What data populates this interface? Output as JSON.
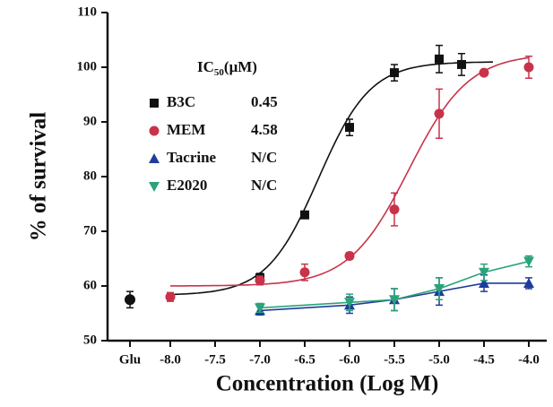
{
  "chart_data": {
    "type": "dose-response",
    "xlabel": "Concentration (Log M)",
    "ylabel": "% of survival",
    "xlim": [
      -8.7,
      -3.8
    ],
    "ylim": [
      50,
      110
    ],
    "yticks": [
      50,
      60,
      70,
      80,
      90,
      100,
      110
    ],
    "xticks": [
      {
        "value": -8.45,
        "label": "Glu"
      },
      {
        "value": -8,
        "label": "-8.0"
      },
      {
        "value": -7.5,
        "label": "-7.5"
      },
      {
        "value": -7,
        "label": "-7.0"
      },
      {
        "value": -6.5,
        "label": "-6.5"
      },
      {
        "value": -6,
        "label": "-6.0"
      },
      {
        "value": -5.5,
        "label": "-5.5"
      },
      {
        "value": -5,
        "label": "-5.0"
      },
      {
        "value": -4.5,
        "label": "-4.5"
      },
      {
        "value": -4,
        "label": "-4.0"
      }
    ],
    "legend_title": {
      "text": "IC",
      "sub": "50",
      "unit": "(μM)"
    },
    "control": {
      "x": -8.45,
      "value": 57.5,
      "error": 1.5,
      "color": "#111111"
    },
    "series": [
      {
        "name": "B3C",
        "ic50": 0.45,
        "color": "#111111",
        "marker": "square",
        "x": [
          -7,
          -6.5,
          -6,
          -5.5,
          -5,
          -4.75
        ],
        "values": [
          61.5,
          73,
          89,
          99,
          101.5,
          100.5
        ],
        "errors": [
          0.8,
          0.6,
          1.5,
          1.5,
          2.5,
          2
        ],
        "fit": {
          "bottom": 58.3,
          "top": 101,
          "hill": 1.5,
          "from": -8,
          "to": -4.4
        }
      },
      {
        "name": "MEM",
        "ic50": 4.58,
        "color": "#c8334a",
        "marker": "circle",
        "x": [
          -8,
          -7,
          -6.5,
          -6,
          -5.5,
          -5,
          -4.5,
          -4
        ],
        "values": [
          58,
          61,
          62.5,
          65.5,
          74,
          91.5,
          99,
          100
        ],
        "errors": [
          0.8,
          0.8,
          1.5,
          0.6,
          3,
          4.5,
          0.5,
          2
        ],
        "fit": {
          "bottom": 60,
          "top": 102.5,
          "hill": 1.3,
          "from": -8,
          "to": -4
        }
      },
      {
        "name": "Tacrine",
        "ic50": "N/C",
        "color": "#1f3c9a",
        "marker": "triangle-up",
        "x": [
          -7,
          -6,
          -5.5,
          -5,
          -4.5,
          -4
        ],
        "values": [
          55.5,
          56.5,
          57.5,
          59,
          60.5,
          60.5
        ],
        "errors": [
          0.8,
          1.5,
          2,
          2.5,
          1.5,
          1
        ]
      },
      {
        "name": "E2020",
        "ic50": "N/C",
        "color": "#2aa37a",
        "marker": "triangle-down",
        "x": [
          -7,
          -6,
          -5.5,
          -5,
          -4.5,
          -4
        ],
        "values": [
          56,
          57,
          57.5,
          59.5,
          62.5,
          64.5
        ],
        "errors": [
          0.8,
          1.5,
          2,
          2,
          1.5,
          1
        ]
      }
    ]
  }
}
